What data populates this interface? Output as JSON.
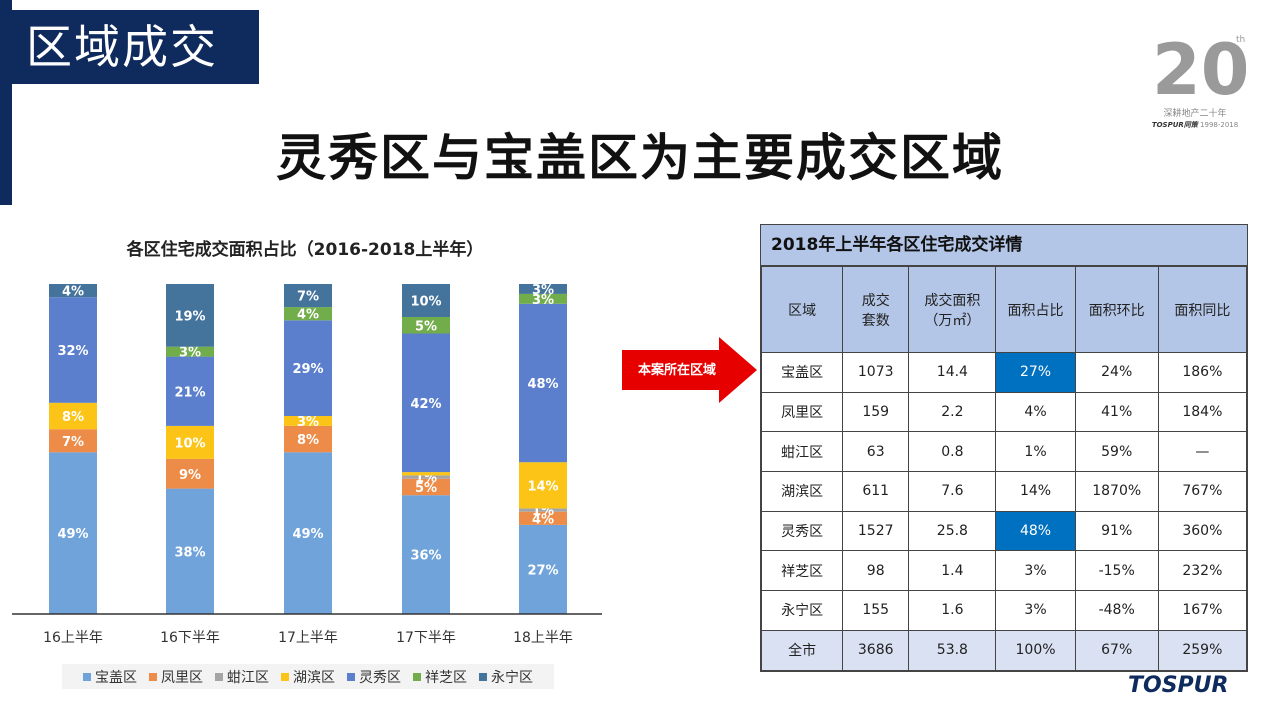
{
  "slide": {
    "section_title": "区域成交",
    "headline": "灵秀区与宝盖区为主要成交区域",
    "arrow_label": "本案所在区域"
  },
  "logo": {
    "big": "20",
    "sup": "th",
    "line1": "深耕地产二十年",
    "brand": "TOSPUR同策",
    "years": "1998-2018",
    "footer_brand": "TOSPUR"
  },
  "chart_data": {
    "type": "bar",
    "stacked": true,
    "title": "各区住宅成交面积占比（2016-2018上半年）",
    "categories": [
      "16上半年",
      "16下半年",
      "17上半年",
      "17下半年",
      "18上半年"
    ],
    "series": [
      {
        "name": "宝盖区",
        "color": "#70a3da",
        "values": [
          49,
          38,
          49,
          36,
          27
        ]
      },
      {
        "name": "凤里区",
        "color": "#ed8c48",
        "values": [
          7,
          9,
          8,
          5,
          4
        ]
      },
      {
        "name": "蚶江区",
        "color": "#a5a5a5",
        "values": [
          0,
          0,
          0,
          1,
          1
        ]
      },
      {
        "name": "湖滨区",
        "color": "#fbc417",
        "values": [
          8,
          10,
          3,
          1,
          14
        ]
      },
      {
        "name": "灵秀区",
        "color": "#5b7fcc",
        "values": [
          32,
          21,
          29,
          42,
          48
        ]
      },
      {
        "name": "祥芝区",
        "color": "#72ad4c",
        "values": [
          0,
          3,
          4,
          5,
          3
        ]
      },
      {
        "name": "永宁区",
        "color": "#44739c",
        "values": [
          4,
          19,
          7,
          10,
          3
        ]
      }
    ],
    "labels": [
      [
        "49%",
        "7%",
        "",
        "8%",
        "32%",
        "",
        "4%"
      ],
      [
        "38%",
        "9%",
        "",
        "10%",
        "21%",
        "3%",
        "19%"
      ],
      [
        "49%",
        "8%",
        "",
        "3%",
        "29%",
        "4%",
        "7%"
      ],
      [
        "36%",
        "5%",
        "1%",
        "",
        "42%",
        "5%",
        "10%"
      ],
      [
        "27%",
        "4%",
        "1%",
        "14%",
        "48%",
        "3%",
        "3%"
      ]
    ],
    "ylim": [
      0,
      100
    ],
    "grid": false,
    "legend_position": "bottom"
  },
  "table": {
    "title": "2018年上半年各区住宅成交详情",
    "headers": [
      "区域",
      "成交\n套数",
      "成交面积\n（万㎡）",
      "面积占比",
      "面积环比",
      "面积同比"
    ],
    "rows": [
      [
        "宝盖区",
        "1073",
        "14.4",
        "27%",
        "24%",
        "186%"
      ],
      [
        "凤里区",
        "159",
        "2.2",
        "4%",
        "41%",
        "184%"
      ],
      [
        "蚶江区",
        "63",
        "0.8",
        "1%",
        "59%",
        "—"
      ],
      [
        "湖滨区",
        "611",
        "7.6",
        "14%",
        "1870%",
        "767%"
      ],
      [
        "灵秀区",
        "1527",
        "25.8",
        "48%",
        "91%",
        "360%"
      ],
      [
        "祥芝区",
        "98",
        "1.4",
        "3%",
        "-15%",
        "232%"
      ],
      [
        "永宁区",
        "155",
        "1.6",
        "3%",
        "-48%",
        "167%"
      ],
      [
        "全市",
        "3686",
        "53.8",
        "100%",
        "67%",
        "259%"
      ]
    ],
    "highlight_color": "#0070c0"
  }
}
